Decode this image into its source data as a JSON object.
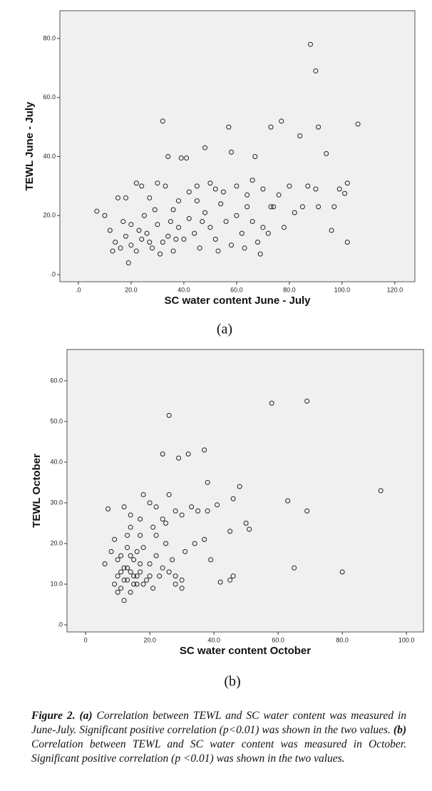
{
  "chart_data": [
    {
      "type": "scatter",
      "label": "(a)",
      "xlabel": "SC water content June - July",
      "ylabel": "TEWL June - July",
      "xlim": [
        -7,
        127.6
      ],
      "ylim": [
        -2.4,
        89.4
      ],
      "xticks": [
        {
          "value": 0,
          "label": ".0"
        },
        {
          "value": 20,
          "label": "20.0"
        },
        {
          "value": 40,
          "label": "40.0"
        },
        {
          "value": 60,
          "label": "60.0"
        },
        {
          "value": 80,
          "label": "80.0"
        },
        {
          "value": 100,
          "label": "100.0"
        },
        {
          "value": 120,
          "label": "120.0"
        }
      ],
      "yticks": [
        {
          "value": 0,
          "label": ".0"
        },
        {
          "value": 20,
          "label": "20.0"
        },
        {
          "value": 40,
          "label": "40.0"
        },
        {
          "value": 60,
          "label": "60.0"
        },
        {
          "value": 80,
          "label": "80.0"
        }
      ],
      "color": "#222222",
      "x": [
        88,
        90,
        32,
        57,
        73,
        77,
        84,
        91,
        106,
        94,
        48,
        34,
        39,
        41,
        58,
        67,
        102,
        96,
        99,
        97,
        101,
        102,
        90,
        91,
        85,
        87,
        80,
        82,
        78,
        76,
        70,
        72,
        66,
        60,
        64,
        55,
        52,
        50,
        45,
        42,
        38,
        36,
        33,
        30,
        27,
        24,
        22,
        18,
        15,
        10,
        7,
        12,
        14,
        16,
        18,
        20,
        22,
        24,
        26,
        28,
        30,
        32,
        34,
        36,
        38,
        40,
        42,
        44,
        46,
        48,
        50,
        52,
        54,
        56,
        58,
        60,
        62,
        64,
        66,
        68,
        70,
        74,
        19,
        20,
        25,
        13,
        17,
        23,
        27,
        29,
        31,
        35,
        37,
        45,
        47,
        53,
        63,
        69,
        73
      ],
      "y": [
        78,
        69,
        52,
        50,
        50,
        52,
        47,
        50,
        51,
        41,
        43,
        40,
        39.5,
        39.5,
        41.5,
        40,
        11,
        15,
        29,
        23,
        27.5,
        31,
        29,
        23,
        23,
        30,
        30,
        21,
        16,
        27,
        29,
        14,
        32,
        30,
        27,
        28,
        29,
        31,
        30,
        28,
        25,
        22,
        30,
        31,
        26,
        30,
        31,
        26,
        26,
        20,
        21.5,
        15,
        11,
        9,
        13,
        10,
        8,
        12,
        14,
        9,
        17,
        11,
        13,
        8,
        16,
        12,
        19,
        14,
        9,
        21,
        16,
        12,
        24,
        18,
        10,
        20,
        14,
        23,
        18,
        11,
        16,
        23,
        4,
        17,
        20,
        8,
        18,
        15,
        11,
        22,
        7,
        18,
        12,
        25,
        18,
        8,
        9,
        7,
        23
      ]
    },
    {
      "type": "scatter",
      "label": "(b)",
      "xlabel": "SC water content October",
      "ylabel": "TEWL October",
      "xlim": [
        -5.8,
        105.3
      ],
      "ylim": [
        -1.75,
        67.7
      ],
      "xticks": [
        {
          "value": 0,
          "label": "0"
        },
        {
          "value": 20,
          "label": "20.0"
        },
        {
          "value": 40,
          "label": "40.0"
        },
        {
          "value": 60,
          "label": "60.0"
        },
        {
          "value": 80,
          "label": "80.0"
        },
        {
          "value": 100,
          "label": "100.0"
        }
      ],
      "yticks": [
        {
          "value": 0,
          "label": ".0"
        },
        {
          "value": 10,
          "label": "10.0"
        },
        {
          "value": 20,
          "label": "20.0"
        },
        {
          "value": 30,
          "label": "30.0"
        },
        {
          "value": 40,
          "label": "40.0"
        },
        {
          "value": 50,
          "label": "50.0"
        },
        {
          "value": 60,
          "label": "60.0"
        }
      ],
      "color": "#222222",
      "x": [
        58,
        69,
        26,
        24,
        32,
        37,
        29,
        92,
        63,
        69,
        80,
        65,
        46,
        48,
        38,
        26,
        18,
        20,
        22,
        7,
        12,
        14,
        17,
        24,
        28,
        33,
        35,
        38,
        41,
        50,
        51,
        45,
        37,
        31,
        34,
        39,
        30,
        42,
        45,
        46,
        30,
        8,
        6,
        9,
        10,
        11,
        12,
        13,
        14,
        15,
        16,
        17,
        18,
        19,
        20,
        21,
        22,
        23,
        24,
        25,
        27,
        28,
        10,
        11,
        13,
        14,
        15,
        16,
        17,
        12,
        13,
        9,
        10,
        11,
        12,
        13,
        14,
        15,
        16,
        18,
        20,
        22,
        26,
        28,
        14,
        17,
        21,
        25,
        30
      ],
      "y": [
        54.5,
        55,
        51.5,
        42,
        42,
        43,
        41,
        33,
        30.5,
        28,
        13,
        14,
        31,
        34,
        35,
        32,
        32,
        30,
        29,
        28.5,
        29,
        27,
        26,
        26,
        28,
        29,
        28,
        28,
        29.5,
        25,
        23.5,
        23,
        21,
        18,
        20,
        16,
        11,
        10.5,
        11,
        12,
        9,
        18,
        15,
        21,
        12,
        9,
        14,
        11,
        8,
        16,
        10,
        13,
        19,
        11,
        15,
        9,
        17,
        12,
        14,
        20,
        16,
        12,
        16,
        17,
        19,
        13,
        10,
        12,
        15,
        6,
        22,
        10,
        8,
        13,
        11,
        14,
        17,
        12,
        18,
        10,
        12,
        22,
        13,
        10,
        24,
        22,
        24,
        25,
        27
      ]
    }
  ],
  "caption": [
    {
      "text": "Figure 2. (a)",
      "bold": true
    },
    {
      "text": " Correlation between TEWL and SC water content was measured in June-July. Significant positive correlation (p<0.01) was shown in the two values. ",
      "bold": false
    },
    {
      "text": "(b)",
      "bold": true
    },
    {
      "text": " Correlation between TEWL and SC water content was measured in October. Significant positive correlation (p <0.01) was shown in the two values.",
      "bold": false
    }
  ]
}
